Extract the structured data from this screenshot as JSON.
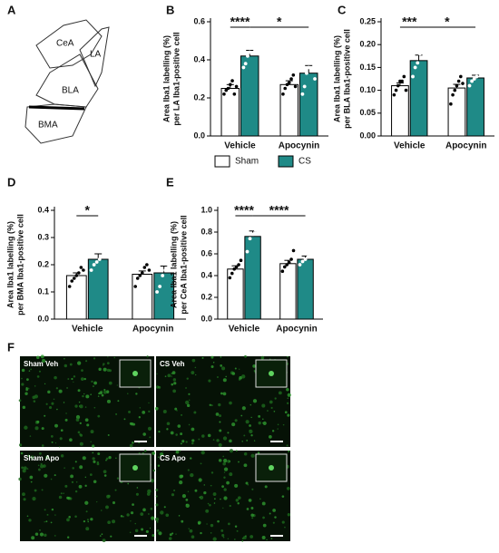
{
  "diagram": {
    "letter": "A",
    "labels": [
      "CeA",
      "LA",
      "BLA",
      "BMA"
    ]
  },
  "images": {
    "letter": "F",
    "labels": [
      "Sham Veh",
      "CS Veh",
      "Sham Apo",
      "CS Apo"
    ]
  },
  "chart_data": [
    {
      "type": "bar",
      "panel": "B",
      "ylabel": [
        "Area Iba1 labelling (%)",
        "per LA Iba1-positive cell"
      ],
      "categories": [
        "Vehicle",
        "Apocynin"
      ],
      "series": [
        {
          "name": "Sham",
          "color": "#ffffff",
          "values": [
            0.25,
            0.27
          ],
          "errors": [
            0.02,
            0.02
          ],
          "points": [
            [
              0.22,
              0.24,
              0.25,
              0.27,
              0.29,
              0.22,
              0.26
            ],
            [
              0.22,
              0.25,
              0.27,
              0.28,
              0.3,
              0.32,
              0.26
            ]
          ]
        },
        {
          "name": "CS",
          "color": "#1f8a87",
          "values": [
            0.42,
            0.33
          ],
          "errors": [
            0.03,
            0.04
          ],
          "points": [
            [
              0.36,
              0.38,
              0.42,
              0.44,
              0.47,
              0.5,
              0.54
            ],
            [
              0.22,
              0.26,
              0.33,
              0.36,
              0.4,
              0.44,
              0.3
            ]
          ]
        }
      ],
      "ylim": [
        0,
        0.6
      ],
      "yticks": [
        {
          "value": 0,
          "label": "0.0"
        },
        0.2,
        0.4,
        0.6
      ],
      "annotations": [
        "****",
        "*"
      ],
      "legend": "below"
    },
    {
      "type": "bar",
      "panel": "C",
      "ylabel": [
        "Area Iba1 labelling (%)",
        "per BLA Iba1-positive cell"
      ],
      "categories": [
        "Vehicle",
        "Apocynin"
      ],
      "series": [
        {
          "name": "Sham",
          "color": "#ffffff",
          "values": [
            0.11,
            0.105
          ],
          "errors": [
            0.006,
            0.008
          ],
          "points": [
            [
              0.09,
              0.1,
              0.11,
              0.12,
              0.12,
              0.13,
              0.1
            ],
            [
              0.07,
              0.09,
              0.1,
              0.11,
              0.12,
              0.13,
              0.115
            ]
          ]
        },
        {
          "name": "CS",
          "color": "#1f8a87",
          "values": [
            0.165,
            0.127
          ],
          "errors": [
            0.012,
            0.006
          ],
          "points": [
            [
              0.13,
              0.15,
              0.16,
              0.18,
              0.19,
              0.2
            ],
            [
              0.11,
              0.12,
              0.125,
              0.13,
              0.14,
              0.14
            ]
          ]
        }
      ],
      "ylim": [
        0,
        0.25
      ],
      "yticks": [
        {
          "value": 0,
          "label": "0.00"
        },
        0.05,
        {
          "value": 0.1,
          "label": "0.10"
        },
        0.15,
        {
          "value": 0.2,
          "label": "0.20"
        },
        0.25
      ],
      "annotations": [
        "***",
        "*"
      ]
    },
    {
      "type": "bar",
      "panel": "D",
      "ylabel": [
        "Area Iba1 labelling (%)",
        "per BMA Iba1-positive cell"
      ],
      "categories": [
        "Vehicle",
        "Apocynin"
      ],
      "series": [
        {
          "name": "Sham",
          "color": "#ffffff",
          "values": [
            0.16,
            0.165
          ],
          "errors": [
            0.01,
            0.012
          ],
          "points": [
            [
              0.12,
              0.14,
              0.15,
              0.16,
              0.17,
              0.19,
              0.18
            ],
            [
              0.12,
              0.15,
              0.16,
              0.17,
              0.19,
              0.2,
              0.18
            ]
          ]
        },
        {
          "name": "CS",
          "color": "#1f8a87",
          "values": [
            0.22,
            0.17
          ],
          "errors": [
            0.02,
            0.025
          ],
          "points": [
            [
              0.18,
              0.2,
              0.21,
              0.22,
              0.25,
              0.29
            ],
            [
              0.1,
              0.12,
              0.16,
              0.18,
              0.19,
              0.27
            ]
          ]
        }
      ],
      "ylim": [
        0,
        0.4
      ],
      "yticks": [
        {
          "value": 0,
          "label": "0.0"
        },
        0.1,
        0.2,
        0.3,
        0.4
      ],
      "annotations": [
        "*"
      ]
    },
    {
      "type": "bar",
      "panel": "E",
      "ylabel": [
        "Area Iba1 labelling (%)",
        "per CeA Iba1-positive cell"
      ],
      "categories": [
        "Vehicle",
        "Apocynin"
      ],
      "series": [
        {
          "name": "Sham",
          "color": "#ffffff",
          "values": [
            0.46,
            0.51
          ],
          "errors": [
            0.03,
            0.03
          ],
          "points": [
            [
              0.38,
              0.42,
              0.46,
              0.48,
              0.5,
              0.54
            ],
            [
              0.44,
              0.48,
              0.5,
              0.52,
              0.55,
              0.63
            ]
          ]
        },
        {
          "name": "CS",
          "color": "#1f8a87",
          "values": [
            0.76,
            0.55
          ],
          "errors": [
            0.05,
            0.03
          ],
          "points": [
            [
              0.62,
              0.74,
              0.78,
              0.82,
              0.85
            ],
            [
              0.5,
              0.53,
              0.55,
              0.57,
              0.6
            ]
          ]
        }
      ],
      "ylim": [
        0,
        1.0
      ],
      "yticks": [
        {
          "value": 0,
          "label": "0.0"
        },
        0.2,
        0.4,
        0.6,
        0.8,
        {
          "value": 1,
          "label": "1.0"
        }
      ],
      "annotations": [
        "****",
        "****"
      ]
    }
  ]
}
